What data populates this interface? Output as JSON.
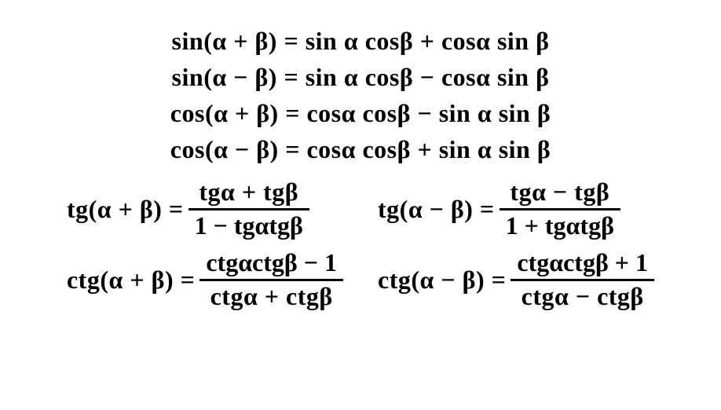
{
  "colors": {
    "text": "#000000",
    "background": "#ffffff"
  },
  "typography": {
    "font_family": "Times New Roman",
    "font_size_pt": 24,
    "font_weight": "bold"
  },
  "top_formulas": {
    "sin_sum": "sin(α + β) = sin α cosβ + cosα sin β",
    "sin_diff": "sin(α − β) = sin α cosβ − cosα sin β",
    "cos_sum": "cos(α + β) = cosα cosβ − sin α sin β",
    "cos_diff": "cos(α − β) = cosα cosβ + sin α sin β"
  },
  "bottom_formulas": {
    "tg_sum": {
      "lhs": "tg(α + β) = ",
      "num": "tgα + tgβ",
      "den": "1 − tgαtgβ"
    },
    "ctg_sum": {
      "lhs": "ctg(α + β) = ",
      "num": "ctgαctgβ − 1",
      "den": "ctgα + ctgβ"
    },
    "tg_diff": {
      "lhs": "tg(α − β) = ",
      "num": "tgα − tgβ",
      "den": "1 + tgαtgβ"
    },
    "ctg_diff": {
      "lhs": "ctg(α − β) = ",
      "num": "ctgαctgβ + 1",
      "den": "ctgα − ctgβ"
    }
  }
}
